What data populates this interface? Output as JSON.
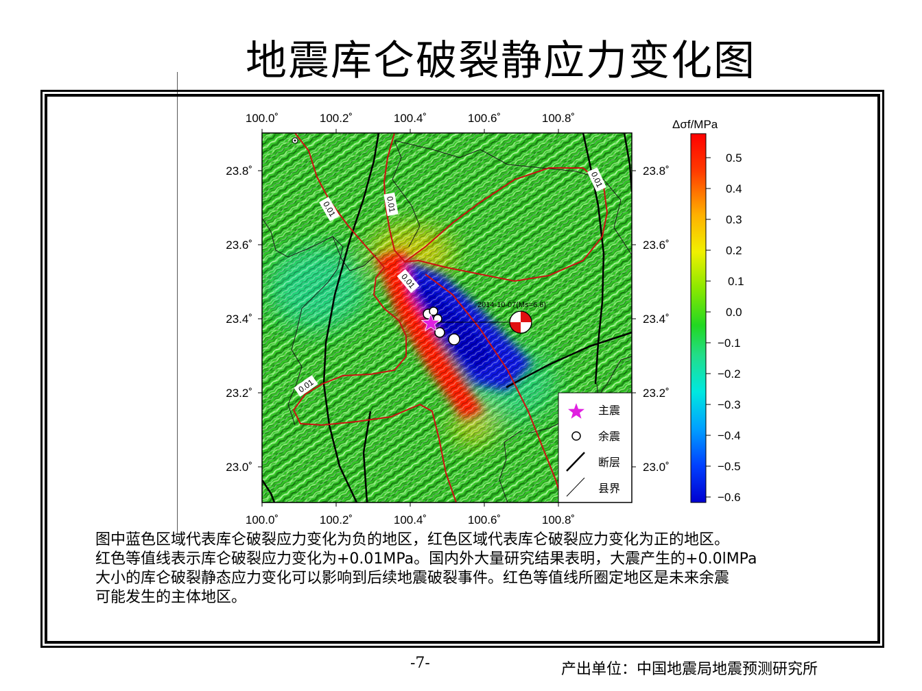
{
  "title": "地震库仑破裂静应力变化图",
  "map": {
    "lon_ticks": [
      "100.0˚",
      "100.2˚",
      "100.4˚",
      "100.6˚",
      "100.8˚"
    ],
    "lat_ticks": [
      "23.8˚",
      "23.6˚",
      "23.4˚",
      "23.2˚",
      "23.0˚"
    ],
    "contour_level": "0.01",
    "event_label": "2014-10-07(Ms=6.6)",
    "colorbar": {
      "title": "Δσf/MPa",
      "ticks": [
        "0.5",
        "0.4",
        "0.3",
        "0.2",
        "0.1",
        "0.0",
        "−0.1",
        "−0.2",
        "−0.3",
        "−0.4",
        "−0.5",
        "−0.6"
      ],
      "colors": [
        "#ff0000",
        "#ff6a00",
        "#ffd000",
        "#d8f000",
        "#5fe000",
        "#1fd81f",
        "#22dd88",
        "#00e8e0",
        "#00a8ff",
        "#0050ff",
        "#0000dd"
      ]
    },
    "legend": {
      "mainshock": "主震",
      "aftershock": "余震",
      "fault": "断层",
      "county_boundary": "县界"
    },
    "colors": {
      "mainshock": "#e020e0",
      "contour": "#cc1111",
      "beachball": "#e01010"
    }
  },
  "caption_lines": [
    "图中蓝色区域代表库仑破裂应力变化为负的地区，红色区域代表库仑破裂应力变化为正的地区。",
    "红色等值线表示库仑破裂应力变化为+0.01MPa。国内外大量研究结果表明，大震产生的+0.0lMPa",
    "大小的库仑破裂静态应力变化可以影响到后续地震破裂事件。红色等值线所圈定地区是未来余震",
    "可能发生的主体地区。"
  ],
  "page_number": "-7-",
  "producer": "产出单位：中国地震局地震预测研究所"
}
